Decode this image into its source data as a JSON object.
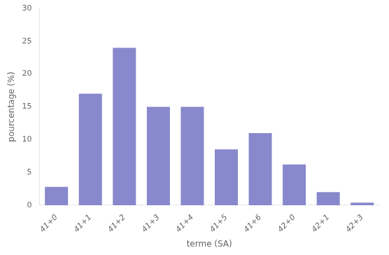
{
  "chart_data": {
    "type": "bar",
    "categories": [
      "41+0",
      "41+1",
      "41+2",
      "41+3",
      "41+4",
      "41+5",
      "41+6",
      "42+0",
      "42+1",
      "42+3"
    ],
    "values": [
      2.8,
      17.0,
      24.0,
      15.0,
      15.0,
      8.5,
      11.0,
      6.2,
      2.0,
      0.4
    ],
    "color": "#8888cc",
    "xlabel": "terme (SA)",
    "ylabel": "pourcentage (%)",
    "ylim": [
      0,
      30
    ],
    "yticks": [
      0,
      5,
      10,
      15,
      20,
      25,
      30
    ],
    "grid": false
  }
}
